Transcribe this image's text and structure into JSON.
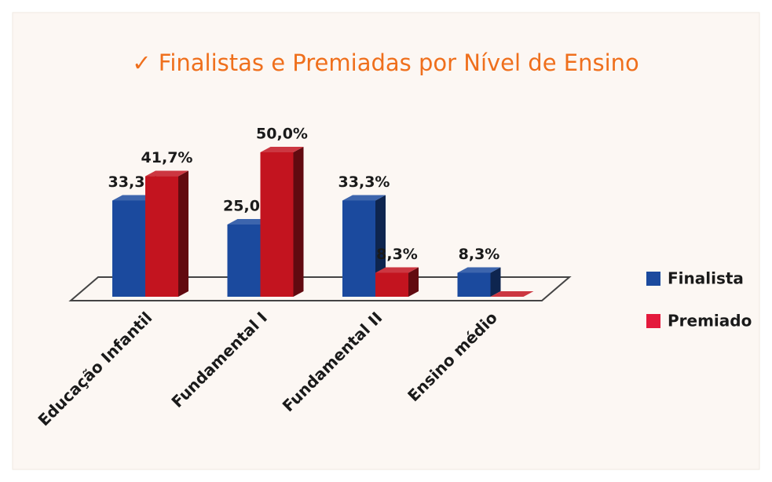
{
  "chart_data": {
    "type": "bar3d",
    "title": "✓ Finalistas e Premiadas por Nível de Ensino",
    "categories": [
      "Educação Infantil",
      "Fundamental I",
      "Fundamental II",
      "Ensino médio"
    ],
    "series": [
      {
        "name": "Finalista",
        "color": "#1b4a9e",
        "values": [
          33.3,
          25.0,
          33.3,
          8.3
        ],
        "value_labels": [
          "33,3%",
          "25,0%",
          "33,3%",
          "8,3%"
        ]
      },
      {
        "name": "Premiado",
        "color": "#c3141f",
        "values": [
          41.7,
          50.0,
          8.3,
          0
        ],
        "value_labels": [
          "41,7%",
          "50,0%",
          "8,3%",
          null
        ]
      }
    ],
    "legend": "right"
  }
}
